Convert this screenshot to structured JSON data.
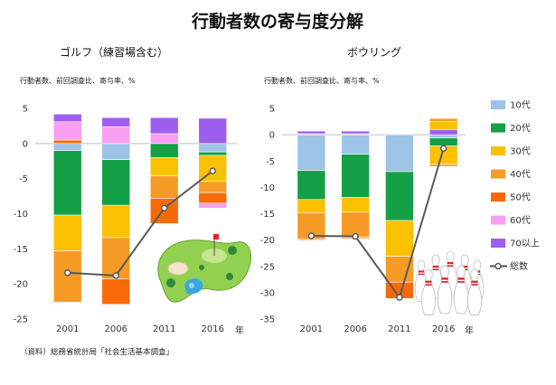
{
  "page_title": "行動者数の寄与度分解",
  "source_note": "（資料）総務省統計局「社会生活基本調査」",
  "x_unit": "年",
  "legend": [
    {
      "label": "10代",
      "color": "#9dc3e6",
      "kind": "box"
    },
    {
      "label": "20代",
      "color": "#14a047",
      "kind": "box"
    },
    {
      "label": "30代",
      "color": "#fbc000",
      "kind": "box"
    },
    {
      "label": "40代",
      "color": "#f79b27",
      "kind": "box"
    },
    {
      "label": "50代",
      "color": "#f86a07",
      "kind": "box"
    },
    {
      "label": "60代",
      "color": "#f99ef0",
      "kind": "box"
    },
    {
      "label": "70以上",
      "color": "#9e5ff0",
      "kind": "box"
    },
    {
      "label": "総数",
      "color": "#555555",
      "kind": "line"
    }
  ],
  "chart_data": [
    {
      "type": "bar",
      "title": "ゴルフ（練習場含む）",
      "ylabel": "行動者数、前回調査比、寄与率、%",
      "categories": [
        "2001",
        "2006",
        "2011",
        "2016"
      ],
      "ylim": [
        -25,
        5
      ],
      "yticks": [
        5,
        0,
        -5,
        -10,
        -15,
        -20,
        -25
      ],
      "stacked": true,
      "series": [
        {
          "name": "10代",
          "color": "#9dc3e6",
          "values": [
            -1.0,
            -2.3,
            0.0,
            -1.2
          ]
        },
        {
          "name": "20代",
          "color": "#14a047",
          "values": [
            -9.2,
            -6.5,
            -2.0,
            -0.5
          ]
        },
        {
          "name": "30代",
          "color": "#fbc000",
          "values": [
            -5.1,
            -4.6,
            -2.6,
            -3.7
          ]
        },
        {
          "name": "40代",
          "color": "#f79b27",
          "values": [
            -7.3,
            -5.9,
            -3.2,
            -1.6
          ]
        },
        {
          "name": "50代",
          "color": "#f86a07",
          "values": [
            0.5,
            -3.6,
            -3.6,
            -1.5
          ]
        },
        {
          "name": "60代",
          "color": "#f99ef0",
          "values": [
            2.6,
            2.4,
            1.4,
            0
          ]
        },
        {
          "name": "70以上",
          "color": "#9e5ff0",
          "values": [
            1.1,
            1.3,
            2.3,
            3.6
          ]
        }
      ],
      "extra_negatives": [
        {
          "series": "60代",
          "values": [
            0,
            0,
            0,
            -0.7
          ]
        }
      ],
      "total": {
        "name": "総数",
        "values": [
          -18.4,
          -18.8,
          -9.2,
          -3.9
        ]
      }
    },
    {
      "type": "bar",
      "title": "ボウリング",
      "ylabel": "行動者数、前回調査比、寄与率、%",
      "categories": [
        "2001",
        "2006",
        "2011",
        "2016"
      ],
      "ylim": [
        -35,
        5
      ],
      "yticks": [
        5,
        0,
        -5,
        -10,
        -15,
        -20,
        -25,
        -30,
        -35
      ],
      "stacked": true,
      "series": [
        {
          "name": "10代",
          "color": "#9dc3e6",
          "values": [
            -6.8,
            -3.7,
            -7.0,
            -0.6
          ]
        },
        {
          "name": "20代",
          "color": "#14a047",
          "values": [
            -5.5,
            -8.2,
            -9.3,
            -1.5
          ]
        },
        {
          "name": "30代",
          "color": "#fbc000",
          "values": [
            -2.5,
            -2.8,
            -6.8,
            -3.5
          ]
        },
        {
          "name": "40代",
          "color": "#f79b27",
          "values": [
            -5.0,
            -4.8,
            -4.9,
            -0.4
          ]
        },
        {
          "name": "50代",
          "color": "#f86a07",
          "values": [
            -0.2,
            -0.2,
            -3.1,
            0
          ]
        },
        {
          "name": "60代",
          "color": "#f99ef0",
          "values": [
            0.2,
            0.2,
            0,
            0
          ]
        },
        {
          "name": "70以上",
          "color": "#9e5ff0",
          "values": [
            0.5,
            0.5,
            0,
            1.0
          ]
        }
      ],
      "extra_positives": [
        {
          "series": "30代",
          "values": [
            0,
            0,
            0,
            1.5
          ]
        },
        {
          "series": "40代",
          "values": [
            0,
            0,
            0,
            0.6
          ]
        }
      ],
      "total": {
        "name": "総数",
        "values": [
          -19.2,
          -19.3,
          -30.9,
          -2.6
        ]
      }
    }
  ]
}
